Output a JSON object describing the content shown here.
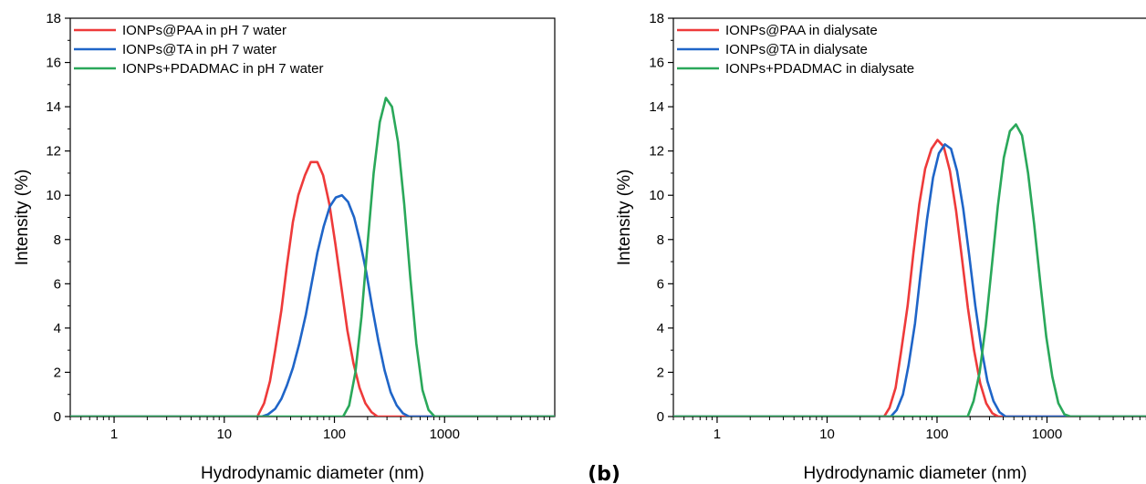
{
  "panel_letters": [
    "(b)"
  ],
  "chart_data": [
    {
      "type": "line",
      "title": "",
      "xlabel": "Hydrodynamic diameter (nm)",
      "ylabel": "Intensity (%)",
      "xscale": "log",
      "xlim": [
        0.4,
        10000
      ],
      "ylim": [
        0,
        18
      ],
      "xticks": [
        1,
        10,
        100,
        1000
      ],
      "xtick_labels": [
        "1",
        "10",
        "100",
        "1000"
      ],
      "yticks": [
        0,
        2,
        4,
        6,
        8,
        10,
        12,
        14,
        16,
        18
      ],
      "ytick_labels": [
        "0",
        "2",
        "4",
        "6",
        "8",
        "10",
        "12",
        "14",
        "16",
        "18"
      ],
      "grid": false,
      "legend_position": "top-left",
      "series": [
        {
          "name": "IONPs@PAA in pH 7 water",
          "color": "#ee3a3a",
          "points": [
            [
              0.4,
              0
            ],
            [
              20,
              0
            ],
            [
              23,
              0.6
            ],
            [
              26,
              1.6
            ],
            [
              29,
              3.0
            ],
            [
              33,
              4.8
            ],
            [
              37,
              6.8
            ],
            [
              42,
              8.8
            ],
            [
              47,
              10.0
            ],
            [
              54,
              10.9
            ],
            [
              61,
              11.5
            ],
            [
              70,
              11.5
            ],
            [
              79,
              10.9
            ],
            [
              90,
              9.6
            ],
            [
              102,
              7.8
            ],
            [
              116,
              5.8
            ],
            [
              131,
              3.9
            ],
            [
              149,
              2.4
            ],
            [
              169,
              1.3
            ],
            [
              191,
              0.6
            ],
            [
              217,
              0.2
            ],
            [
              246,
              0
            ],
            [
              10000,
              0
            ]
          ]
        },
        {
          "name": "IONPs@TA in pH 7 water",
          "color": "#1f65c8",
          "points": [
            [
              0.4,
              0
            ],
            [
              22,
              0
            ],
            [
              25,
              0.1
            ],
            [
              29,
              0.35
            ],
            [
              33,
              0.8
            ],
            [
              37,
              1.4
            ],
            [
              42,
              2.2
            ],
            [
              48,
              3.3
            ],
            [
              55,
              4.6
            ],
            [
              62,
              6.0
            ],
            [
              70,
              7.4
            ],
            [
              80,
              8.6
            ],
            [
              91,
              9.5
            ],
            [
              103,
              9.9
            ],
            [
              117,
              10.0
            ],
            [
              133,
              9.7
            ],
            [
              151,
              9.0
            ],
            [
              171,
              7.9
            ],
            [
              195,
              6.5
            ],
            [
              221,
              4.9
            ],
            [
              251,
              3.4
            ],
            [
              285,
              2.1
            ],
            [
              324,
              1.1
            ],
            [
              368,
              0.5
            ],
            [
              418,
              0.15
            ],
            [
              475,
              0
            ],
            [
              10000,
              0
            ]
          ]
        },
        {
          "name": "IONPs+PDADMAC in pH 7 water",
          "color": "#2aa85a",
          "points": [
            [
              0.4,
              0
            ],
            [
              120,
              0
            ],
            [
              136,
              0.5
            ],
            [
              155,
              2.0
            ],
            [
              176,
              4.5
            ],
            [
              200,
              7.8
            ],
            [
              227,
              11.0
            ],
            [
              258,
              13.3
            ],
            [
              293,
              14.4
            ],
            [
              333,
              14.0
            ],
            [
              378,
              12.4
            ],
            [
              430,
              9.6
            ],
            [
              488,
              6.3
            ],
            [
              554,
              3.3
            ],
            [
              630,
              1.2
            ],
            [
              715,
              0.3
            ],
            [
              812,
              0
            ],
            [
              10000,
              0
            ]
          ]
        }
      ]
    },
    {
      "type": "line",
      "title": "",
      "xlabel": "Hydrodynamic diameter (nm)",
      "ylabel": "Intensity (%)",
      "xscale": "log",
      "xlim": [
        0.4,
        10000
      ],
      "ylim": [
        0,
        18
      ],
      "xticks": [
        1,
        10,
        100,
        1000
      ],
      "xtick_labels": [
        "1",
        "10",
        "100",
        "1000"
      ],
      "yticks": [
        0,
        2,
        4,
        6,
        8,
        10,
        12,
        14,
        16,
        18
      ],
      "ytick_labels": [
        "0",
        "2",
        "4",
        "6",
        "8",
        "10",
        "12",
        "14",
        "16",
        "18"
      ],
      "grid": false,
      "legend_position": "top-left",
      "series": [
        {
          "name": "IONPs@PAA in dialysate",
          "color": "#ee3a3a",
          "points": [
            [
              0.4,
              0
            ],
            [
              33,
              0
            ],
            [
              37,
              0.4
            ],
            [
              42,
              1.3
            ],
            [
              47,
              2.9
            ],
            [
              54,
              5.0
            ],
            [
              61,
              7.4
            ],
            [
              69,
              9.6
            ],
            [
              78,
              11.2
            ],
            [
              89,
              12.1
            ],
            [
              101,
              12.5
            ],
            [
              115,
              12.2
            ],
            [
              131,
              11.1
            ],
            [
              149,
              9.3
            ],
            [
              169,
              7.1
            ],
            [
              191,
              4.9
            ],
            [
              217,
              3.0
            ],
            [
              247,
              1.5
            ],
            [
              280,
              0.6
            ],
            [
              318,
              0.15
            ],
            [
              360,
              0
            ],
            [
              10000,
              0
            ]
          ]
        },
        {
          "name": "IONPs@TA in dialysate",
          "color": "#1f65c8",
          "points": [
            [
              0.4,
              0
            ],
            [
              38,
              0
            ],
            [
              43,
              0.3
            ],
            [
              49,
              1.0
            ],
            [
              55,
              2.3
            ],
            [
              63,
              4.2
            ],
            [
              71,
              6.5
            ],
            [
              81,
              8.9
            ],
            [
              92,
              10.8
            ],
            [
              104,
              11.9
            ],
            [
              118,
              12.3
            ],
            [
              134,
              12.1
            ],
            [
              152,
              11.1
            ],
            [
              173,
              9.4
            ],
            [
              196,
              7.3
            ],
            [
              223,
              5.0
            ],
            [
              253,
              3.1
            ],
            [
              287,
              1.6
            ],
            [
              326,
              0.7
            ],
            [
              370,
              0.2
            ],
            [
              420,
              0
            ],
            [
              10000,
              0
            ]
          ]
        },
        {
          "name": "IONPs+PDADMAC in dialysate",
          "color": "#2aa85a",
          "points": [
            [
              0.4,
              0
            ],
            [
              190,
              0
            ],
            [
              215,
              0.7
            ],
            [
              244,
              2.0
            ],
            [
              277,
              4.1
            ],
            [
              315,
              6.8
            ],
            [
              357,
              9.5
            ],
            [
              405,
              11.7
            ],
            [
              460,
              12.9
            ],
            [
              522,
              13.2
            ],
            [
              593,
              12.7
            ],
            [
              673,
              11.0
            ],
            [
              764,
              8.7
            ],
            [
              867,
              6.1
            ],
            [
              985,
              3.6
            ],
            [
              1118,
              1.8
            ],
            [
              1269,
              0.6
            ],
            [
              1441,
              0.1
            ],
            [
              1636,
              0
            ],
            [
              10000,
              0
            ]
          ]
        }
      ]
    }
  ]
}
